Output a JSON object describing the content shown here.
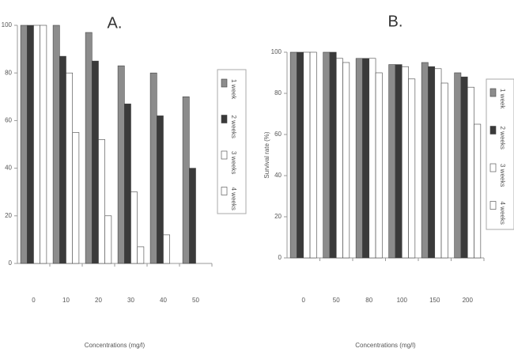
{
  "chart_data": [
    {
      "type": "bar",
      "title": "A.",
      "x_label": "Concentrations (mg/l)",
      "categories": [
        "0",
        "10",
        "20",
        "30",
        "40",
        "50"
      ],
      "series": [
        {
          "name": "1 week",
          "color": "#8c8c8c",
          "values": [
            100,
            100,
            97,
            83,
            80,
            70
          ]
        },
        {
          "name": "2 weeks",
          "color": "#3a3a3a",
          "values": [
            100,
            87,
            85,
            67,
            62,
            40
          ]
        },
        {
          "name": "3 weeks",
          "color": "#ffffff",
          "values": [
            100,
            80,
            52,
            30,
            12,
            0
          ]
        },
        {
          "name": "4 weeks",
          "color": "#ffffff",
          "values": [
            100,
            55,
            20,
            7,
            0,
            0
          ]
        }
      ],
      "ylim": [
        0,
        100
      ],
      "yticks": [
        0,
        20,
        40,
        60,
        80,
        100
      ],
      "legend": "right"
    },
    {
      "type": "bar",
      "title": "B.",
      "x_label": "Concentrations (mg/l)",
      "y_label": "Survival rate (%)",
      "categories": [
        "0",
        "50",
        "80",
        "100",
        "150",
        "200"
      ],
      "series": [
        {
          "name": "1 week",
          "color": "#8c8c8c",
          "values": [
            100,
            100,
            97,
            94,
            95,
            90
          ]
        },
        {
          "name": "2 weeks",
          "color": "#3a3a3a",
          "values": [
            100,
            100,
            97,
            94,
            93,
            88
          ]
        },
        {
          "name": "3 weeks",
          "color": "#ffffff",
          "values": [
            100,
            97,
            97,
            93,
            92,
            83
          ]
        },
        {
          "name": "4 weeks",
          "color": "#ffffff",
          "values": [
            100,
            95,
            90,
            87,
            85,
            65
          ]
        }
      ],
      "ylim": [
        0,
        100
      ],
      "yticks": [
        0,
        20,
        40,
        60,
        80,
        100
      ],
      "legend": "right"
    }
  ]
}
